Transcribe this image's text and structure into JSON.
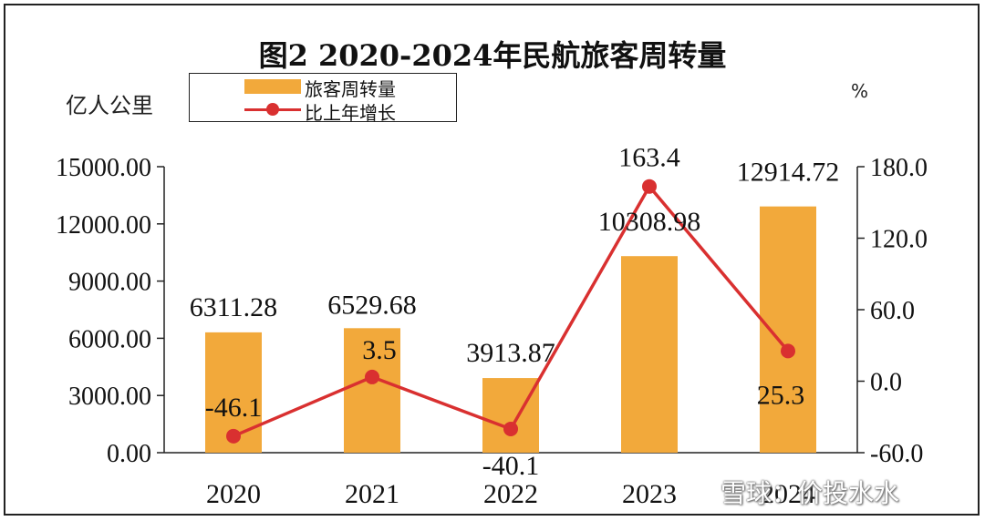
{
  "watermark": "雪球：价投水水",
  "chart_data": {
    "type": "bar",
    "title": "图2  2020-2024年民航旅客周转量",
    "categories": [
      "2020",
      "2021",
      "2022",
      "2023",
      "2024"
    ],
    "y_left": {
      "unit": "亿人公里",
      "ylim": [
        0,
        15000
      ],
      "ticks": [
        "0.00",
        "3000.00",
        "6000.00",
        "9000.00",
        "12000.00",
        "15000.00"
      ]
    },
    "y_right": {
      "unit": "%",
      "ylim": [
        -60,
        180
      ],
      "ticks": [
        "-60.0",
        "0.0",
        "60.0",
        "120.0",
        "180.0"
      ]
    },
    "series": [
      {
        "name": "旅客周转量",
        "type": "bar",
        "axis": "left",
        "color": "#F2A93B",
        "values": [
          6311.28,
          6529.68,
          3913.87,
          10308.98,
          12914.72
        ],
        "labels": [
          "6311.28",
          "6529.68",
          "3913.87",
          "10308.98",
          "12914.72"
        ]
      },
      {
        "name": "比上年增长",
        "type": "line",
        "axis": "right",
        "color": "#D93030",
        "values": [
          -46.1,
          3.5,
          -40.1,
          163.4,
          25.3
        ],
        "labels": [
          "-46.1",
          "3.5",
          "-40.1",
          "163.4",
          "25.3"
        ]
      }
    ],
    "legend": "top-left",
    "grid": false
  }
}
